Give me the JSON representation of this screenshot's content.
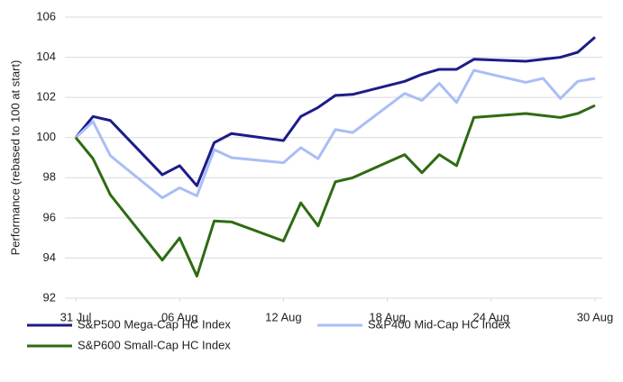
{
  "chart_data": {
    "type": "line",
    "y_label": "Performance (rebased to 100 at start)",
    "x": [
      0,
      1,
      2,
      5,
      6,
      7,
      8,
      9,
      12,
      13,
      14,
      15,
      16,
      19,
      20,
      21,
      22,
      23,
      26,
      27,
      28,
      29,
      30
    ],
    "xlim": [
      0,
      30
    ],
    "xticks": [
      {
        "value": 0,
        "label": "31 Jul"
      },
      {
        "value": 6,
        "label": "06 Aug"
      },
      {
        "value": 12,
        "label": "12 Aug"
      },
      {
        "value": 18,
        "label": "18 Aug"
      },
      {
        "value": 24,
        "label": "24 Aug"
      },
      {
        "value": 30,
        "label": "30 Aug"
      }
    ],
    "ylim": [
      92,
      106
    ],
    "yticks": [
      92,
      94,
      96,
      98,
      100,
      102,
      104,
      106
    ],
    "grid": true,
    "legend": "bottom",
    "series": [
      {
        "name": "S&P500 Mega-Cap HC Index",
        "color": "#1c1c8a",
        "values": [
          100,
          101.05,
          100.85,
          98.15,
          98.6,
          97.6,
          99.75,
          100.2,
          99.85,
          101.05,
          101.5,
          102.1,
          102.15,
          102.8,
          103.15,
          103.4,
          103.4,
          103.9,
          103.8,
          103.9,
          104.0,
          104.25,
          105.0
        ]
      },
      {
        "name": "S&P400 Mid-Cap HC Index",
        "color": "#a9bef5",
        "values": [
          100,
          100.8,
          99.1,
          97.0,
          97.5,
          97.1,
          99.4,
          99.0,
          98.75,
          99.5,
          98.95,
          100.4,
          100.25,
          102.2,
          101.85,
          102.7,
          101.75,
          103.35,
          102.75,
          102.95,
          101.95,
          102.8,
          102.95
        ]
      },
      {
        "name": "S&P600 Small-Cap HC Index",
        "color": "#2e6b12",
        "values": [
          100,
          98.95,
          97.15,
          93.9,
          95.0,
          93.1,
          95.85,
          95.8,
          94.85,
          96.75,
          95.6,
          97.8,
          98.0,
          99.15,
          98.25,
          99.15,
          98.6,
          101.0,
          101.2,
          101.1,
          101.0,
          101.2,
          101.6
        ]
      }
    ]
  }
}
